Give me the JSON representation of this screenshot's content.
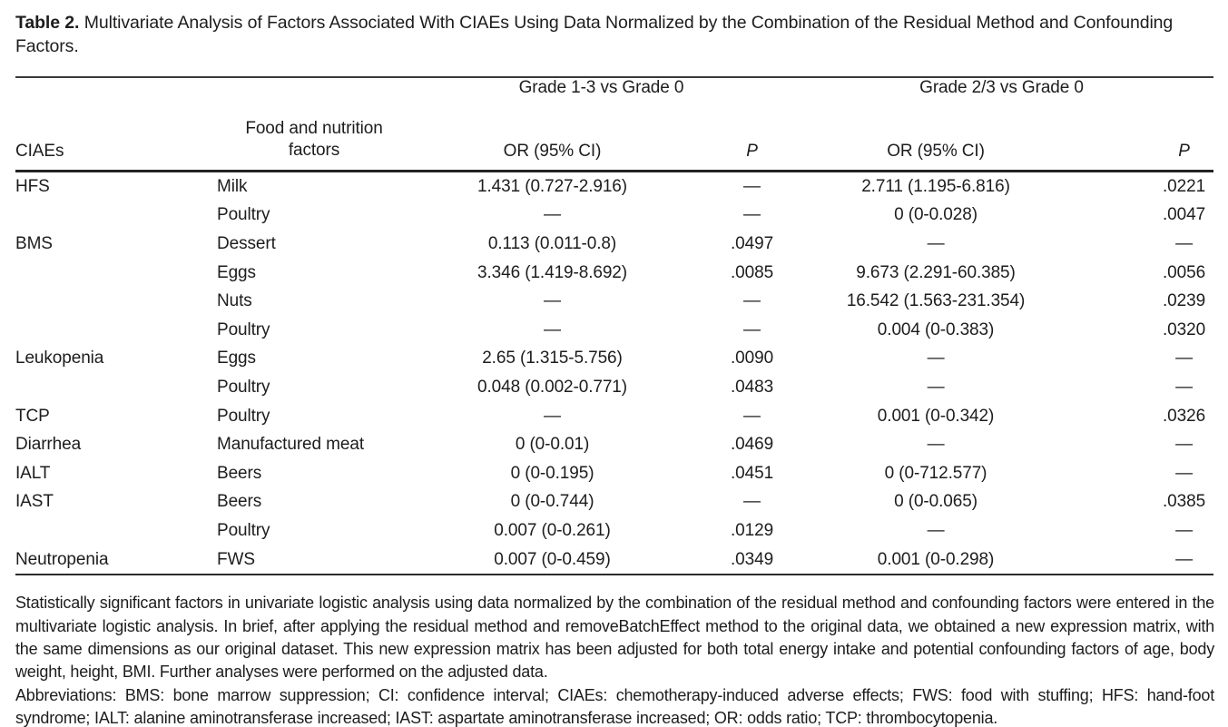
{
  "title": {
    "label": "Table 2.",
    "text": "Multivariate Analysis of Factors Associated With CIAEs Using Data Normalized by the Combination of the Residual Method and Confounding Factors."
  },
  "table": {
    "columns": {
      "ciaes": "CIAEs",
      "factors_line1": "Food and nutrition",
      "factors_line2": "factors",
      "group1": "Grade 1-3 vs Grade 0",
      "group2": "Grade 2/3 vs Grade 0",
      "or_ci": "OR (95% CI)",
      "p": "P"
    },
    "rows": [
      [
        "HFS",
        "Milk",
        "1.431 (0.727-2.916)",
        "—",
        "2.711 (1.195-6.816)",
        ".0221"
      ],
      [
        "",
        "Poultry",
        "—",
        "—",
        "0 (0-0.028)",
        ".0047"
      ],
      [
        "BMS",
        "Dessert",
        "0.113 (0.011-0.8)",
        ".0497",
        "—",
        "—"
      ],
      [
        "",
        "Eggs",
        "3.346 (1.419-8.692)",
        ".0085",
        "9.673 (2.291-60.385)",
        ".0056"
      ],
      [
        "",
        "Nuts",
        "—",
        "—",
        "16.542 (1.563-231.354)",
        ".0239"
      ],
      [
        "",
        "Poultry",
        "—",
        "—",
        "0.004 (0-0.383)",
        ".0320"
      ],
      [
        "Leukopenia",
        "Eggs",
        "2.65 (1.315-5.756)",
        ".0090",
        "—",
        "—"
      ],
      [
        "",
        "Poultry",
        "0.048 (0.002-0.771)",
        ".0483",
        "—",
        "—"
      ],
      [
        "TCP",
        "Poultry",
        "—",
        "—",
        "0.001 (0-0.342)",
        ".0326"
      ],
      [
        "Diarrhea",
        "Manufactured meat",
        "0 (0-0.01)",
        ".0469",
        "—",
        "—"
      ],
      [
        "IALT",
        "Beers",
        "0 (0-0.195)",
        ".0451",
        "0 (0-712.577)",
        "—"
      ],
      [
        "IAST",
        "Beers",
        "0 (0-0.744)",
        "—",
        "0 (0-0.065)",
        ".0385"
      ],
      [
        "",
        "Poultry",
        "0.007 (0-0.261)",
        ".0129",
        "—",
        "—"
      ],
      [
        "Neutropenia",
        "FWS",
        "0.007 (0-0.459)",
        ".0349",
        "0.001 (0-0.298)",
        "—"
      ]
    ]
  },
  "footnotes": {
    "note": "Statistically significant factors in univariate logistic analysis using data normalized by the combination of the residual method and confounding factors were entered in the multivariate logistic analysis. In brief, after applying the residual method and removeBatchEffect method to the original data, we obtained a new expression matrix, with the same dimensions as our original dataset. This new expression matrix has been adjusted for both total energy intake and potential confounding factors of age, body weight, height, BMI. Further analyses were performed on the adjusted data.",
    "abbreviations": "Abbreviations: BMS: bone marrow suppression; CI: confidence interval; CIAEs: chemotherapy-induced adverse effects; FWS: food with stuffing; HFS: hand-foot syndrome; IALT: alanine aminotransferase increased; IAST: aspartate aminotransferase increased; OR: odds ratio; TCP: thrombocytopenia."
  }
}
